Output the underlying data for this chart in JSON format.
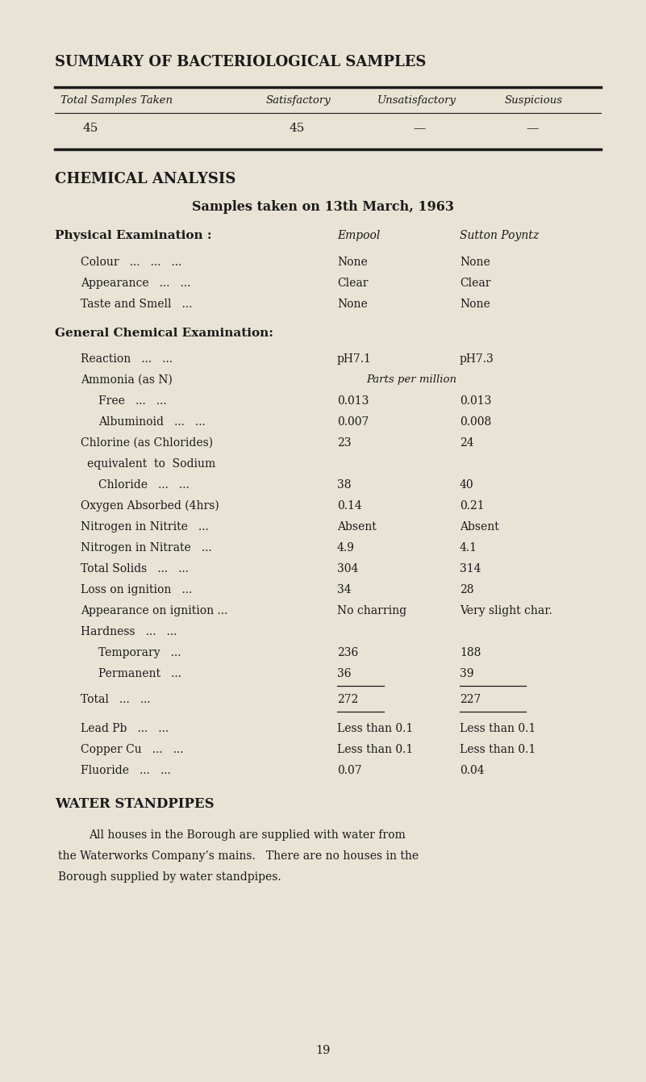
{
  "bg_color": "#e8e3d5",
  "text_color": "#1a1a1a",
  "title1": "SUMMARY OF BACTERIOLOGICAL SAMPLES",
  "title2": "CHEMICAL ANALYSIS",
  "subtitle2": "Samples taken on 13th March, 1963",
  "col_header1": "Empool",
  "col_header2": "Sutton Poyntz",
  "physical_label": "Physical Examination :",
  "general_label": "General Chemical Examination:",
  "water_title": "WATER STANDPIPES",
  "water_line1": "All houses in the Borough are supplied with water from",
  "water_line2": "the Waterworks Company’s mains.   There are no houses in the",
  "water_line3": "Borough supplied by water standpipes.",
  "page_number": "19",
  "tbl_hdr_col1": "Total Samples Taken",
  "tbl_hdr_col2": "Satisfactory",
  "tbl_hdr_col3": "Unsatisfactory",
  "tbl_hdr_col4": "Suspicious",
  "tbl_val1": "45",
  "tbl_val2": "45",
  "tbl_val3": "—",
  "tbl_val4": "—"
}
